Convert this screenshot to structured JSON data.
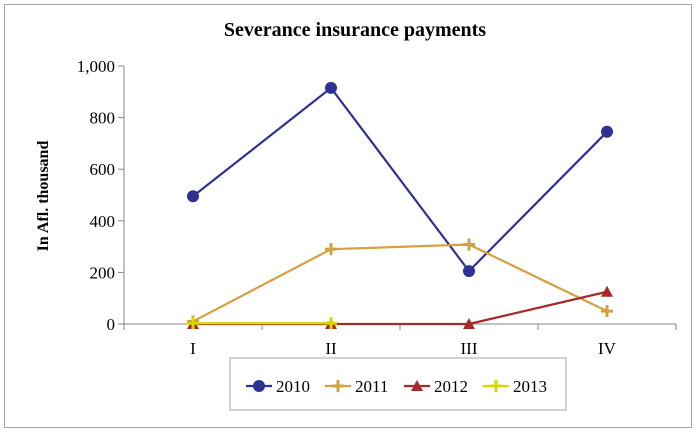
{
  "chart_data": {
    "type": "line",
    "title": "Severance insurance payments",
    "xlabel": "",
    "ylabel": "In Afl. thousand",
    "categories": [
      "I",
      "II",
      "III",
      "IV"
    ],
    "ylim": [
      0,
      1000
    ],
    "yticks": [
      0,
      200,
      400,
      600,
      800,
      1000
    ],
    "ytick_labels": [
      "0",
      "200",
      "400",
      "600",
      "800",
      "1,000"
    ],
    "grid": false,
    "legend_position": "bottom",
    "series": [
      {
        "name": "2010",
        "values": [
          495,
          915,
          205,
          745
        ],
        "color": "#2e3192",
        "marker": "circle"
      },
      {
        "name": "2011",
        "values": [
          10,
          290,
          308,
          50
        ],
        "color": "#d4a040",
        "marker": "plus"
      },
      {
        "name": "2012",
        "values": [
          0,
          0,
          0,
          125
        ],
        "color": "#a52a2a",
        "marker": "triangle"
      },
      {
        "name": "2013",
        "values": [
          3,
          3,
          null,
          null
        ],
        "color": "#d6d600",
        "marker": "plus"
      }
    ]
  }
}
